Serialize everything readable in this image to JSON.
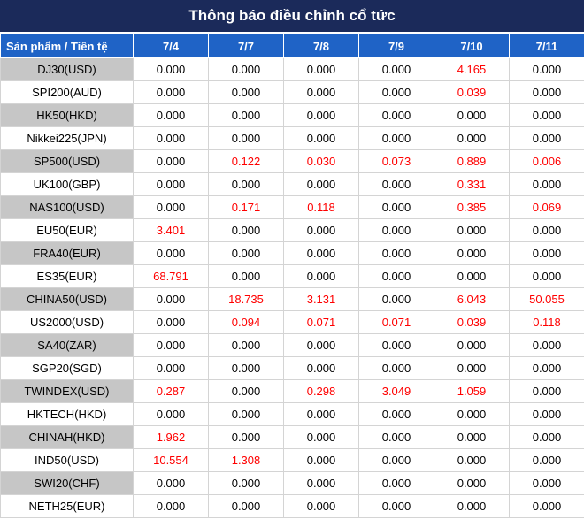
{
  "title": "Thông báo điều chỉnh cổ tức",
  "header": {
    "product_label": "Sản phẩm / Tiền tệ",
    "dates": [
      "7/4",
      "7/7",
      "7/8",
      "7/9",
      "7/10",
      "7/11"
    ]
  },
  "colors": {
    "title_bg": "#1b2a5a",
    "header_bg": "#1f63c6",
    "highlight": "#ff0000",
    "stripe": "#c6c6c6"
  },
  "rows": [
    {
      "product": "DJ30(USD)",
      "values": [
        "0.000",
        "0.000",
        "0.000",
        "0.000",
        "4.165",
        "0.000"
      ]
    },
    {
      "product": "SPI200(AUD)",
      "values": [
        "0.000",
        "0.000",
        "0.000",
        "0.000",
        "0.039",
        "0.000"
      ]
    },
    {
      "product": "HK50(HKD)",
      "values": [
        "0.000",
        "0.000",
        "0.000",
        "0.000",
        "0.000",
        "0.000"
      ]
    },
    {
      "product": "Nikkei225(JPN)",
      "values": [
        "0.000",
        "0.000",
        "0.000",
        "0.000",
        "0.000",
        "0.000"
      ]
    },
    {
      "product": "SP500(USD)",
      "values": [
        "0.000",
        "0.122",
        "0.030",
        "0.073",
        "0.889",
        "0.006"
      ]
    },
    {
      "product": "UK100(GBP)",
      "values": [
        "0.000",
        "0.000",
        "0.000",
        "0.000",
        "0.331",
        "0.000"
      ]
    },
    {
      "product": "NAS100(USD)",
      "values": [
        "0.000",
        "0.171",
        "0.118",
        "0.000",
        "0.385",
        "0.069"
      ]
    },
    {
      "product": "EU50(EUR)",
      "values": [
        "3.401",
        "0.000",
        "0.000",
        "0.000",
        "0.000",
        "0.000"
      ]
    },
    {
      "product": "FRA40(EUR)",
      "values": [
        "0.000",
        "0.000",
        "0.000",
        "0.000",
        "0.000",
        "0.000"
      ]
    },
    {
      "product": "ES35(EUR)",
      "values": [
        "68.791",
        "0.000",
        "0.000",
        "0.000",
        "0.000",
        "0.000"
      ]
    },
    {
      "product": "CHINA50(USD)",
      "values": [
        "0.000",
        "18.735",
        "3.131",
        "0.000",
        "6.043",
        "50.055"
      ]
    },
    {
      "product": "US2000(USD)",
      "values": [
        "0.000",
        "0.094",
        "0.071",
        "0.071",
        "0.039",
        "0.118"
      ]
    },
    {
      "product": "SA40(ZAR)",
      "values": [
        "0.000",
        "0.000",
        "0.000",
        "0.000",
        "0.000",
        "0.000"
      ]
    },
    {
      "product": "SGP20(SGD)",
      "values": [
        "0.000",
        "0.000",
        "0.000",
        "0.000",
        "0.000",
        "0.000"
      ]
    },
    {
      "product": "TWINDEX(USD)",
      "values": [
        "0.287",
        "0.000",
        "0.298",
        "3.049",
        "1.059",
        "0.000"
      ]
    },
    {
      "product": "HKTECH(HKD)",
      "values": [
        "0.000",
        "0.000",
        "0.000",
        "0.000",
        "0.000",
        "0.000"
      ]
    },
    {
      "product": "CHINAH(HKD)",
      "values": [
        "1.962",
        "0.000",
        "0.000",
        "0.000",
        "0.000",
        "0.000"
      ]
    },
    {
      "product": "IND50(USD)",
      "values": [
        "10.554",
        "1.308",
        "0.000",
        "0.000",
        "0.000",
        "0.000"
      ]
    },
    {
      "product": "SWI20(CHF)",
      "values": [
        "0.000",
        "0.000",
        "0.000",
        "0.000",
        "0.000",
        "0.000"
      ]
    },
    {
      "product": "NETH25(EUR)",
      "values": [
        "0.000",
        "0.000",
        "0.000",
        "0.000",
        "0.000",
        "0.000"
      ]
    }
  ]
}
